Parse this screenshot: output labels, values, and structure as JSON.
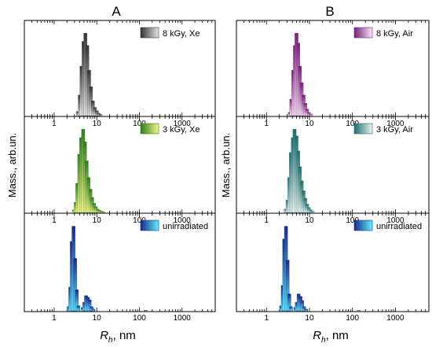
{
  "chart_data": [
    {
      "type": "bar",
      "column": "A",
      "title": "A",
      "ylabel": "Mass., arb.un.",
      "xlabel": "R_h, nm",
      "xscale": "log",
      "xlim": [
        0.2,
        6000
      ],
      "xticks": [
        "1",
        "10",
        "100",
        "1000"
      ],
      "panels": [
        {
          "legend": "8 kGy, Xe",
          "colors": [
            "#333333",
            "#e8e8e8"
          ],
          "bars": [
            [
              3.6,
              0.05
            ],
            [
              4.0,
              0.25
            ],
            [
              4.4,
              0.6
            ],
            [
              4.9,
              0.9
            ],
            [
              5.4,
              1.0
            ],
            [
              6.0,
              0.85
            ],
            [
              6.6,
              0.55
            ],
            [
              7.3,
              0.35
            ],
            [
              8.1,
              0.18
            ],
            [
              9.0,
              0.1
            ],
            [
              10.0,
              0.06
            ],
            [
              11.0,
              0.03
            ],
            [
              12.2,
              0.015
            ]
          ]
        },
        {
          "legend": "3 kGy, Xe",
          "colors": [
            "#2f7d1f",
            "#f5f58a"
          ],
          "bars": [
            [
              2.9,
              0.03
            ],
            [
              3.2,
              0.12
            ],
            [
              3.5,
              0.35
            ],
            [
              3.9,
              0.7
            ],
            [
              4.3,
              0.9
            ],
            [
              4.8,
              1.0
            ],
            [
              5.3,
              0.85
            ],
            [
              5.8,
              0.62
            ],
            [
              6.4,
              0.42
            ],
            [
              7.1,
              0.28
            ],
            [
              7.8,
              0.18
            ],
            [
              8.6,
              0.11
            ],
            [
              9.5,
              0.07
            ],
            [
              10.5,
              0.04
            ],
            [
              11.6,
              0.025
            ],
            [
              12.8,
              0.015
            ],
            [
              14.2,
              0.008
            ]
          ]
        },
        {
          "legend": "unirradiated",
          "colors": [
            "#1a2a8a",
            "#5ff0ff"
          ],
          "bars": [
            [
              2.2,
              0.05
            ],
            [
              2.4,
              0.28
            ],
            [
              2.6,
              0.82
            ],
            [
              2.85,
              1.0
            ],
            [
              3.1,
              0.62
            ],
            [
              3.4,
              0.25
            ],
            [
              3.7,
              0.06
            ],
            [
              4.7,
              0.04
            ],
            [
              5.1,
              0.1
            ],
            [
              5.6,
              0.18
            ],
            [
              6.2,
              0.16
            ],
            [
              6.8,
              0.13
            ],
            [
              7.5,
              0.05
            ],
            [
              8.2,
              0.02
            ],
            [
              140,
              0.006
            ]
          ]
        }
      ]
    },
    {
      "type": "bar",
      "column": "B",
      "title": "B",
      "ylabel": "Mass., arb.un.",
      "xlabel": "R_h, nm",
      "xscale": "log",
      "xlim": [
        0.2,
        6000
      ],
      "xticks": [
        "1",
        "10",
        "100",
        "1000"
      ],
      "panels": [
        {
          "legend": "8 kGy, Air",
          "colors": [
            "#7a1f7a",
            "#f4e8f4"
          ],
          "bars": [
            [
              3.5,
              0.04
            ],
            [
              3.8,
              0.2
            ],
            [
              4.2,
              0.55
            ],
            [
              4.6,
              0.85
            ],
            [
              5.0,
              1.0
            ],
            [
              5.5,
              0.88
            ],
            [
              6.0,
              0.6
            ],
            [
              6.6,
              0.4
            ],
            [
              7.3,
              0.25
            ],
            [
              8.0,
              0.15
            ],
            [
              8.8,
              0.08
            ],
            [
              9.7,
              0.04
            ],
            [
              10.7,
              0.02
            ]
          ]
        },
        {
          "legend": "3 kGy, Air",
          "colors": [
            "#1e6e6e",
            "#f0f0f0"
          ],
          "bars": [
            [
              2.8,
              0.04
            ],
            [
              3.1,
              0.15
            ],
            [
              3.4,
              0.42
            ],
            [
              3.7,
              0.72
            ],
            [
              4.1,
              0.9
            ],
            [
              4.5,
              1.0
            ],
            [
              5.0,
              0.92
            ],
            [
              5.5,
              0.74
            ],
            [
              6.0,
              0.55
            ],
            [
              6.6,
              0.38
            ],
            [
              7.3,
              0.26
            ],
            [
              8.0,
              0.17
            ],
            [
              8.8,
              0.1
            ],
            [
              9.7,
              0.06
            ],
            [
              10.7,
              0.03
            ],
            [
              11.8,
              0.015
            ]
          ]
        },
        {
          "legend": "unirradiated",
          "colors": [
            "#1a2a8a",
            "#5ff0ff"
          ],
          "bars": [
            [
              2.2,
              0.06
            ],
            [
              2.4,
              0.3
            ],
            [
              2.6,
              0.85
            ],
            [
              2.85,
              1.0
            ],
            [
              3.1,
              0.6
            ],
            [
              3.4,
              0.2
            ],
            [
              3.7,
              0.05
            ],
            [
              4.7,
              0.04
            ],
            [
              5.1,
              0.1
            ],
            [
              5.6,
              0.2
            ],
            [
              6.2,
              0.17
            ],
            [
              6.8,
              0.12
            ],
            [
              7.5,
              0.05
            ],
            [
              8.2,
              0.02
            ],
            [
              140,
              0.005
            ]
          ]
        }
      ]
    }
  ],
  "labels": {
    "col_a": "A",
    "col_b": "B",
    "ylabel": "Mass., arb.un.",
    "xlabel_main": "R",
    "xlabel_sub": "h",
    "xlabel_unit": ", nm"
  }
}
